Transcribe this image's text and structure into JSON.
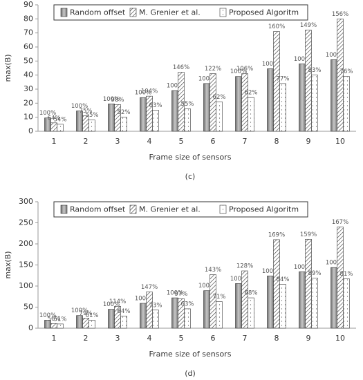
{
  "chart_data": [
    {
      "type": "bar",
      "caption": "(c)",
      "x_label": "Frame size of sensors",
      "y_label": "max(B)",
      "categories": [
        "1",
        "2",
        "3",
        "4",
        "5",
        "6",
        "7",
        "8",
        "9",
        "10"
      ],
      "ylim": [
        0,
        90
      ],
      "yticks": [
        0,
        10,
        20,
        30,
        40,
        50,
        60,
        70,
        80,
        90
      ],
      "series": [
        {
          "name": "Random offset",
          "color": "#9a9a9a",
          "pattern": "gradient",
          "values": [
            9.5,
            14.5,
            19.5,
            24,
            29,
            34,
            39,
            44.5,
            48,
            51
          ],
          "labels": [
            "100%",
            "100%",
            "100%",
            "100%",
            "100%",
            "100%",
            "100%",
            "100%",
            "100%",
            "100%"
          ]
        },
        {
          "name": "M. Grenier et al.",
          "color": "#ffffff",
          "pattern": "hatch",
          "values": [
            6,
            11,
            19,
            25,
            42,
            41,
            41,
            71,
            72,
            80
          ],
          "labels": [
            "64%",
            "75%",
            "98%",
            "104%",
            "146%",
            "122%",
            "106%",
            "160%",
            "149%",
            "156%"
          ]
        },
        {
          "name": "Proposed Algoritm",
          "color": "#ffffff",
          "pattern": "dots",
          "values": [
            5,
            8,
            10,
            15,
            16,
            21,
            24,
            34,
            40,
            39
          ],
          "labels": [
            "54%",
            "55%",
            "52%",
            "63%",
            "55%",
            "62%",
            "62%",
            "77%",
            "83%",
            "76%"
          ]
        }
      ]
    },
    {
      "type": "bar",
      "caption": "(d)",
      "x_label": "Frame size of sensors",
      "y_label": "max(B)",
      "categories": [
        "1",
        "2",
        "3",
        "4",
        "5",
        "6",
        "7",
        "8",
        "9",
        "10"
      ],
      "ylim": [
        0,
        300
      ],
      "yticks": [
        0,
        50,
        100,
        150,
        200,
        250,
        300
      ],
      "series": [
        {
          "name": "Random offset",
          "color": "#9a9a9a",
          "pattern": "gradient",
          "values": [
            19,
            30,
            45,
            59,
            72,
            89,
            106,
            124,
            134,
            144
          ],
          "labels": [
            "100%",
            "100%",
            "100%",
            "100%",
            "100%",
            "100%",
            "100%",
            "100%",
            "100%",
            "100%"
          ]
        },
        {
          "name": "M. Grenier et al.",
          "color": "#ffffff",
          "pattern": "hatch",
          "values": [
            11,
            24,
            52,
            86,
            70,
            127,
            136,
            210,
            211,
            240
          ],
          "labels": [
            "56%",
            "79%",
            "114%",
            "147%",
            "97%",
            "143%",
            "128%",
            "169%",
            "159%",
            "167%"
          ]
        },
        {
          "name": "Proposed Algoritm",
          "color": "#ffffff",
          "pattern": "dots",
          "values": [
            10,
            19,
            29,
            43,
            46,
            63,
            72,
            104,
            119,
            117
          ],
          "labels": [
            "51%",
            "61%",
            "64%",
            "73%",
            "63%",
            "71%",
            "68%",
            "84%",
            "89%",
            "81%"
          ]
        }
      ]
    }
  ]
}
